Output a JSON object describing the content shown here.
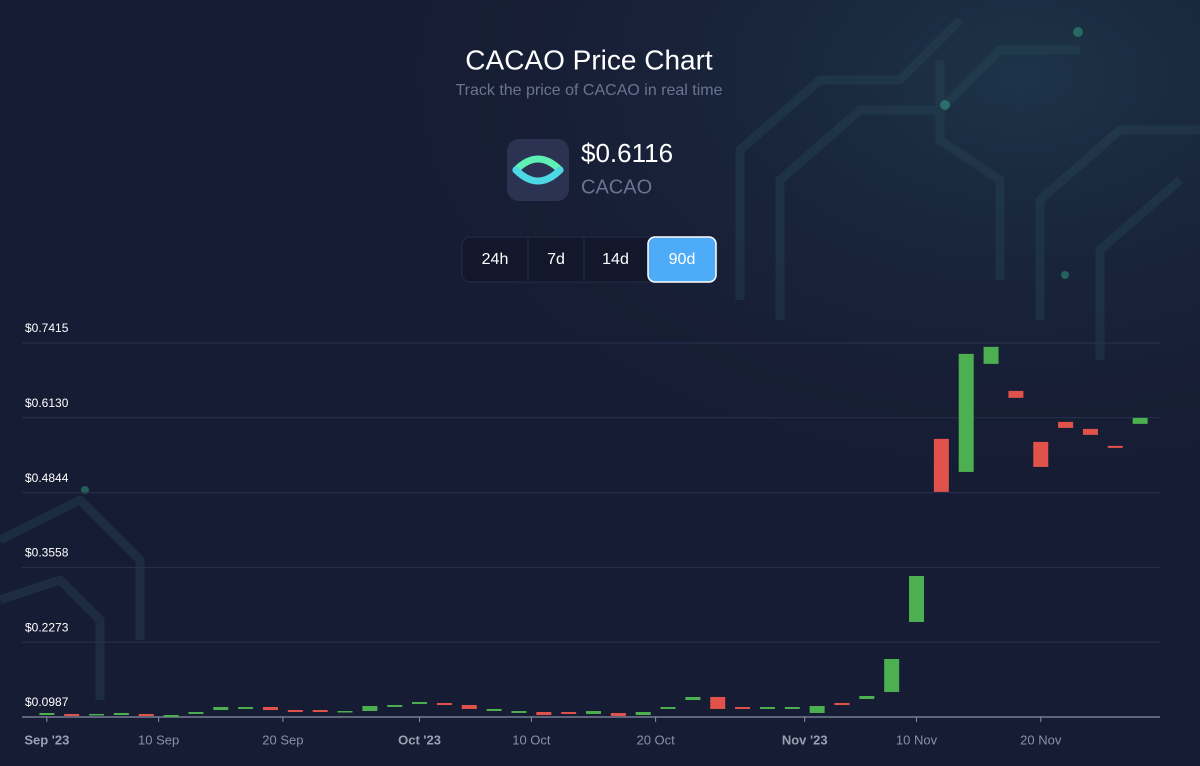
{
  "header": {
    "title": "CACAO Price Chart",
    "subtitle": "Track the price of CACAO in real time",
    "price": "$0.6116",
    "symbol": "CACAO"
  },
  "time_ranges": [
    {
      "label": "24h"
    },
    {
      "label": "7d"
    },
    {
      "label": "14d"
    },
    {
      "label": "90d",
      "active": true
    }
  ],
  "chart_data": {
    "type": "candlestick",
    "up_color": "#4caf50",
    "down_color": "#e0524a",
    "grid": true,
    "x": [
      "2023-09-01",
      "2023-09-03",
      "2023-09-05",
      "2023-09-07",
      "2023-09-09",
      "2023-09-11",
      "2023-09-13",
      "2023-09-15",
      "2023-09-17",
      "2023-09-19",
      "2023-09-21",
      "2023-09-23",
      "2023-09-25",
      "2023-09-27",
      "2023-09-29",
      "2023-10-01",
      "2023-10-03",
      "2023-10-05",
      "2023-10-07",
      "2023-10-09",
      "2023-10-11",
      "2023-10-13",
      "2023-10-15",
      "2023-10-17",
      "2023-10-19",
      "2023-10-21",
      "2023-10-23",
      "2023-10-25",
      "2023-10-27",
      "2023-10-29",
      "2023-10-31",
      "2023-11-02",
      "2023-11-04",
      "2023-11-06",
      "2023-11-08",
      "2023-11-10",
      "2023-11-12",
      "2023-11-14",
      "2023-11-16",
      "2023-11-18",
      "2023-11-20",
      "2023-11-22",
      "2023-11-24",
      "2023-11-26",
      "2023-11-28"
    ],
    "open": [
      0.1021,
      0.1039,
      0.1021,
      0.1021,
      0.1039,
      0.0987,
      0.1039,
      0.1107,
      0.1125,
      0.1159,
      0.1107,
      0.1107,
      0.1073,
      0.109,
      0.1159,
      0.1211,
      0.1228,
      0.1193,
      0.109,
      0.1056,
      0.1073,
      0.1073,
      0.1039,
      0.1056,
      0.1021,
      0.1125,
      0.1279,
      0.1331,
      0.1159,
      0.1125,
      0.1125,
      0.1056,
      0.1228,
      0.1296,
      0.1417,
      0.262,
      0.5767,
      0.5199,
      0.7056,
      0.6592,
      0.5715,
      0.6059,
      0.5939,
      0.5647,
      0.6025
    ],
    "close": [
      0.1056,
      0.1004,
      0.1039,
      0.1056,
      0.1004,
      0.1021,
      0.1073,
      0.1159,
      0.1159,
      0.1107,
      0.1073,
      0.1073,
      0.109,
      0.1176,
      0.1193,
      0.1245,
      0.1193,
      0.1125,
      0.1125,
      0.109,
      0.1021,
      0.1039,
      0.109,
      0.1004,
      0.1073,
      0.1159,
      0.1331,
      0.1125,
      0.1125,
      0.1159,
      0.1159,
      0.1176,
      0.1193,
      0.1348,
      0.1984,
      0.3411,
      0.4856,
      0.7228,
      0.7349,
      0.6472,
      0.5285,
      0.5956,
      0.5836,
      0.5612,
      0.6128
    ],
    "xlim": [
      "2023-08-30",
      "2023-11-30"
    ],
    "xticks": [
      {
        "value": "2023-09-01",
        "label": "Sep '23",
        "emphasis": true
      },
      {
        "value": "2023-09-10",
        "label": "10 Sep"
      },
      {
        "value": "2023-09-20",
        "label": "20 Sep"
      },
      {
        "value": "2023-10-01",
        "label": "Oct '23",
        "emphasis": true
      },
      {
        "value": "2023-10-10",
        "label": "10 Oct"
      },
      {
        "value": "2023-10-20",
        "label": "20 Oct"
      },
      {
        "value": "2023-11-01",
        "label": "Nov '23",
        "emphasis": true
      },
      {
        "value": "2023-11-10",
        "label": "10 Nov"
      },
      {
        "value": "2023-11-20",
        "label": "20 Nov"
      }
    ],
    "ylim": [
      0.0987,
      0.7415
    ],
    "yticks": [
      {
        "value": 0.0987,
        "label": "$0.0987"
      },
      {
        "value": 0.2273,
        "label": "$0.2273"
      },
      {
        "value": 0.3558,
        "label": "$0.3558"
      },
      {
        "value": 0.4844,
        "label": "$0.4844"
      },
      {
        "value": 0.613,
        "label": "$0.6130"
      },
      {
        "value": 0.7415,
        "label": "$0.7415"
      }
    ]
  }
}
